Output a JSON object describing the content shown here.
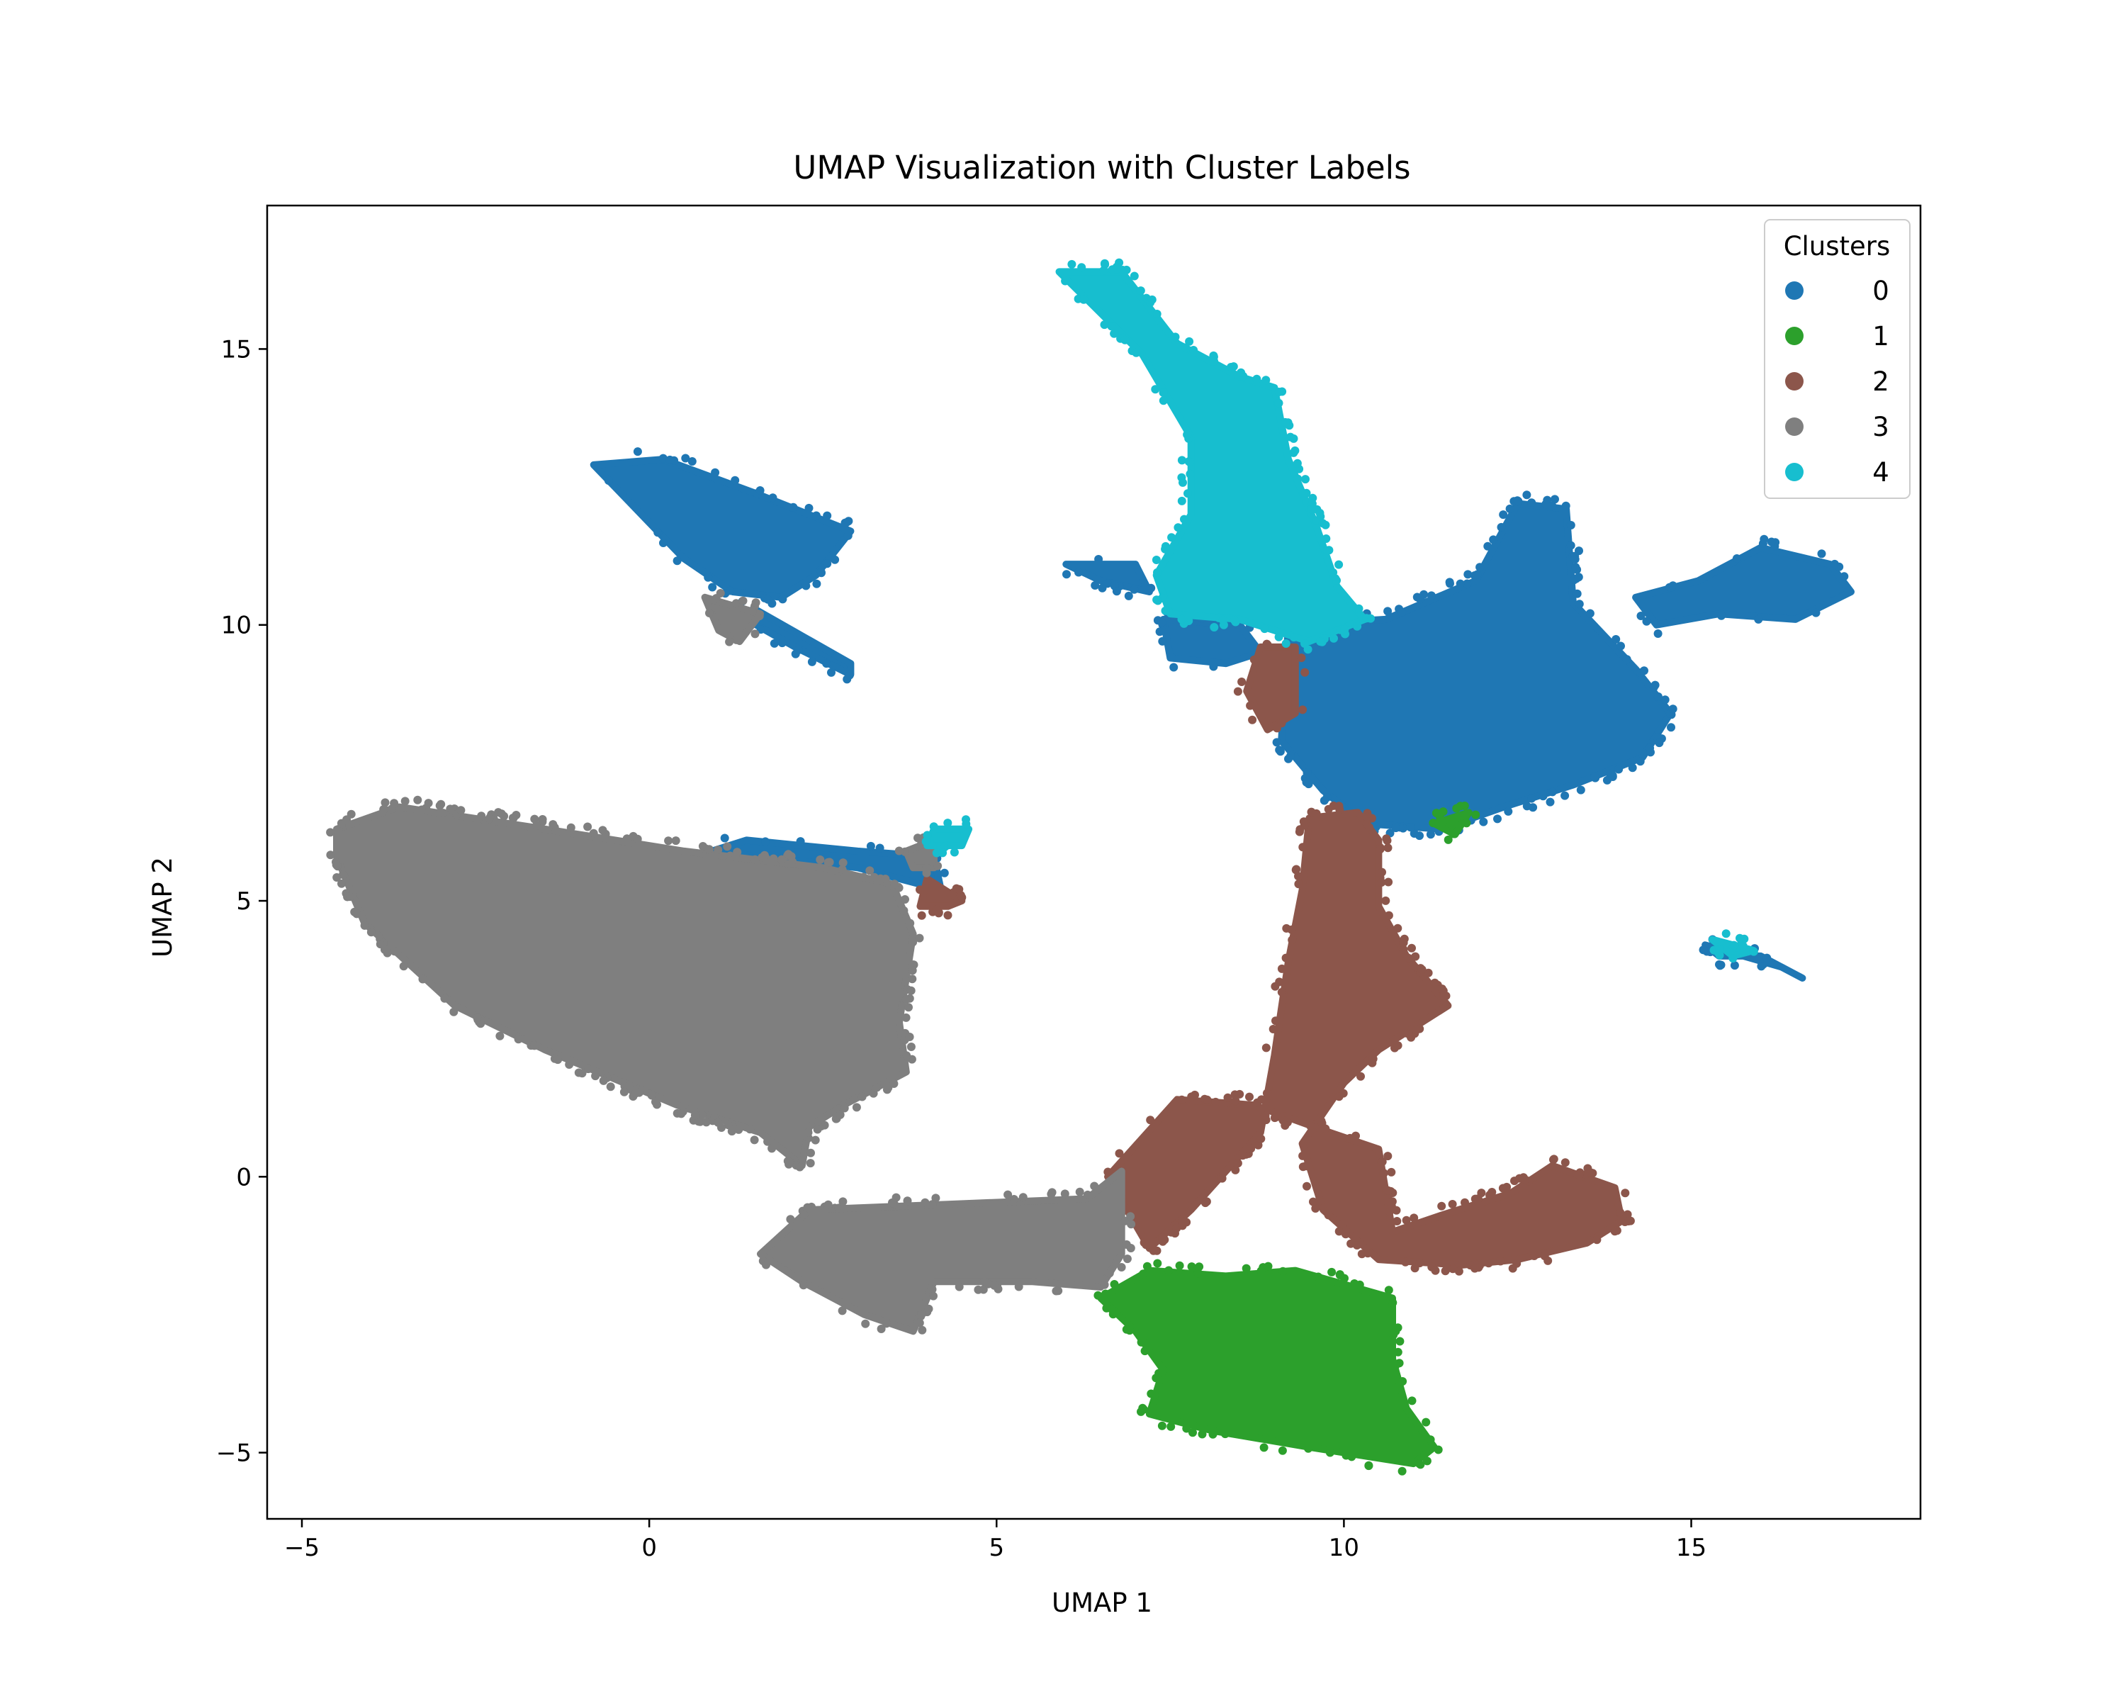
{
  "chart_data": {
    "type": "scatter",
    "title": "UMAP Visualization with Cluster Labels",
    "xlabel": "UMAP 1",
    "ylabel": "UMAP 2",
    "xlim": [
      -5.5,
      18.3
    ],
    "ylim": [
      -6.2,
      17.6
    ],
    "xticks": [
      -5,
      0,
      5,
      10,
      15
    ],
    "yticks": [
      -5,
      0,
      5,
      10,
      15
    ],
    "xtick_labels": [
      "−5",
      "0",
      "5",
      "10",
      "15"
    ],
    "ytick_labels": [
      "−5",
      "0",
      "5",
      "10",
      "15"
    ],
    "grid": false,
    "legend": {
      "title": "Clusters",
      "placement": "top-right"
    },
    "series": [
      {
        "name": "0",
        "color": "#1f77b4",
        "regions": [
          {
            "points": [
              [
                -0.8,
                12.9
              ],
              [
                0.2,
                13.0
              ],
              [
                1.5,
                12.4
              ],
              [
                2.9,
                11.7
              ],
              [
                2.4,
                10.9
              ],
              [
                1.9,
                10.5
              ],
              [
                1.2,
                10.6
              ],
              [
                0.5,
                11.2
              ]
            ]
          },
          {
            "points": [
              [
                1.5,
                10.3
              ],
              [
                2.2,
                9.8
              ],
              [
                2.9,
                9.3
              ],
              [
                2.9,
                9.1
              ],
              [
                2.1,
                9.6
              ],
              [
                1.4,
                10.1
              ]
            ]
          },
          {
            "points": [
              [
                9.2,
                10.0
              ],
              [
                10.6,
                10.1
              ],
              [
                11.9,
                10.8
              ],
              [
                12.5,
                12.2
              ],
              [
                13.2,
                12.1
              ],
              [
                13.3,
                10.4
              ],
              [
                14.2,
                9.2
              ],
              [
                14.7,
                8.4
              ],
              [
                14.3,
                7.6
              ],
              [
                13.3,
                7.1
              ],
              [
                12.3,
                6.7
              ],
              [
                11.4,
                6.3
              ],
              [
                10.3,
                6.4
              ],
              [
                9.7,
                7.0
              ],
              [
                9.1,
                7.9
              ]
            ]
          },
          {
            "points": [
              [
                14.2,
                10.5
              ],
              [
                15.1,
                10.8
              ],
              [
                16.0,
                11.4
              ],
              [
                17.0,
                11.1
              ],
              [
                17.3,
                10.6
              ],
              [
                16.5,
                10.1
              ],
              [
                15.4,
                10.2
              ],
              [
                14.5,
                10.0
              ]
            ]
          },
          {
            "points": [
              [
                7.4,
                10.1
              ],
              [
                8.5,
                10.0
              ],
              [
                8.8,
                9.5
              ],
              [
                8.3,
                9.3
              ],
              [
                7.5,
                9.4
              ]
            ]
          },
          {
            "points": [
              [
                0.9,
                5.9
              ],
              [
                3.0,
                5.6
              ],
              [
                4.2,
                5.2
              ],
              [
                4.1,
                5.8
              ],
              [
                3.0,
                5.9
              ],
              [
                1.4,
                6.1
              ]
            ]
          },
          {
            "points": [
              [
                6.0,
                11.1
              ],
              [
                7.0,
                11.1
              ],
              [
                7.2,
                10.6
              ],
              [
                6.5,
                10.8
              ]
            ]
          },
          {
            "points": [
              [
                15.2,
                4.2
              ],
              [
                16.3,
                3.8
              ],
              [
                16.6,
                3.6
              ],
              [
                16.0,
                4.0
              ],
              [
                15.4,
                4.0
              ]
            ]
          }
        ]
      },
      {
        "name": "1",
        "color": "#2ca02c",
        "regions": [
          {
            "points": [
              [
                6.5,
                -2.2
              ],
              [
                7.2,
                -1.7
              ],
              [
                8.3,
                -1.8
              ],
              [
                9.3,
                -1.7
              ],
              [
                10.7,
                -2.2
              ],
              [
                10.7,
                -3.3
              ],
              [
                10.9,
                -4.2
              ],
              [
                11.3,
                -4.9
              ],
              [
                11.0,
                -5.2
              ],
              [
                9.5,
                -4.9
              ],
              [
                8.1,
                -4.6
              ],
              [
                7.2,
                -4.3
              ],
              [
                7.4,
                -3.5
              ],
              [
                7.0,
                -2.8
              ]
            ]
          },
          {
            "points": [
              [
                11.3,
                6.4
              ],
              [
                11.8,
                6.6
              ],
              [
                11.6,
                6.2
              ]
            ]
          }
        ]
      },
      {
        "name": "2",
        "color": "#8c564b",
        "regions": [
          {
            "points": [
              [
                9.5,
                6.5
              ],
              [
                10.2,
                6.6
              ],
              [
                10.5,
                6.1
              ],
              [
                10.5,
                4.9
              ],
              [
                10.9,
                4.0
              ],
              [
                11.5,
                3.1
              ],
              [
                10.5,
                2.3
              ],
              [
                10.0,
                1.7
              ],
              [
                9.4,
                0.6
              ],
              [
                9.7,
                -0.6
              ],
              [
                10.5,
                -1.5
              ],
              [
                11.7,
                -1.6
              ],
              [
                12.5,
                -1.5
              ],
              [
                13.5,
                -1.2
              ],
              [
                14.0,
                -0.8
              ],
              [
                13.9,
                -0.2
              ],
              [
                13.0,
                0.2
              ],
              [
                12.4,
                -0.3
              ],
              [
                11.4,
                -0.7
              ],
              [
                10.7,
                -1.0
              ],
              [
                10.5,
                0.5
              ],
              [
                9.8,
                0.8
              ],
              [
                8.7,
                1.3
              ],
              [
                7.6,
                1.4
              ],
              [
                6.6,
                0.0
              ],
              [
                7.2,
                -1.3
              ],
              [
                7.8,
                -0.6
              ],
              [
                8.8,
                0.8
              ],
              [
                9.0,
                2.2
              ],
              [
                9.2,
                3.9
              ],
              [
                9.4,
                5.2
              ]
            ]
          },
          {
            "points": [
              [
                8.8,
                9.6
              ],
              [
                9.3,
                9.6
              ],
              [
                9.3,
                8.4
              ],
              [
                8.9,
                8.1
              ],
              [
                8.6,
                8.8
              ]
            ]
          },
          {
            "points": [
              [
                4.0,
                5.4
              ],
              [
                4.5,
                5.0
              ],
              [
                4.3,
                4.9
              ],
              [
                3.9,
                4.9
              ]
            ]
          }
        ]
      },
      {
        "name": "3",
        "color": "#7f7f7f",
        "regions": [
          {
            "points": [
              [
                -4.5,
                6.3
              ],
              [
                -3.6,
                6.7
              ],
              [
                -1.5,
                6.3
              ],
              [
                0.5,
                5.9
              ],
              [
                2.5,
                5.6
              ],
              [
                3.5,
                5.3
              ],
              [
                3.8,
                4.4
              ],
              [
                3.6,
                2.8
              ],
              [
                3.7,
                1.9
              ],
              [
                2.8,
                1.3
              ],
              [
                2.3,
                0.9
              ],
              [
                2.2,
                0.2
              ],
              [
                1.6,
                0.8
              ],
              [
                0.4,
                1.3
              ],
              [
                -1.5,
                2.3
              ],
              [
                -2.8,
                3.1
              ],
              [
                -4.1,
                4.6
              ],
              [
                -4.5,
                5.8
              ]
            ]
          },
          {
            "points": [
              [
                1.6,
                -1.4
              ],
              [
                2.3,
                -0.6
              ],
              [
                4.3,
                -0.5
              ],
              [
                6.3,
                -0.4
              ],
              [
                6.8,
                0.1
              ],
              [
                6.8,
                -1.4
              ],
              [
                6.5,
                -2.0
              ],
              [
                5.5,
                -1.9
              ],
              [
                4.1,
                -1.9
              ],
              [
                3.8,
                -2.8
              ],
              [
                3.1,
                -2.5
              ],
              [
                2.2,
                -1.9
              ]
            ]
          },
          {
            "points": [
              [
                0.8,
                10.5
              ],
              [
                1.6,
                10.2
              ],
              [
                1.3,
                9.7
              ],
              [
                1.0,
                9.9
              ]
            ]
          },
          {
            "points": [
              [
                3.7,
                5.9
              ],
              [
                4.1,
                6.1
              ],
              [
                4.1,
                5.6
              ],
              [
                3.8,
                5.6
              ]
            ]
          }
        ]
      },
      {
        "name": "4",
        "color": "#17becf",
        "regions": [
          {
            "points": [
              [
                5.9,
                16.4
              ],
              [
                6.8,
                16.4
              ],
              [
                7.6,
                15.1
              ],
              [
                8.5,
                14.5
              ],
              [
                9.0,
                14.3
              ],
              [
                9.2,
                13.0
              ],
              [
                9.6,
                11.8
              ],
              [
                9.9,
                10.7
              ],
              [
                10.3,
                10.1
              ],
              [
                9.5,
                9.7
              ],
              [
                8.5,
                10.1
              ],
              [
                7.5,
                10.2
              ],
              [
                7.3,
                10.9
              ],
              [
                7.8,
                12.0
              ],
              [
                7.8,
                13.4
              ],
              [
                7.1,
                14.9
              ]
            ]
          },
          {
            "points": [
              [
                4.1,
                6.3
              ],
              [
                4.6,
                6.3
              ],
              [
                4.5,
                6.0
              ],
              [
                4.0,
                6.0
              ]
            ]
          },
          {
            "points": [
              [
                15.3,
                4.3
              ],
              [
                15.9,
                4.1
              ],
              [
                15.6,
                4.0
              ]
            ]
          }
        ]
      }
    ]
  }
}
